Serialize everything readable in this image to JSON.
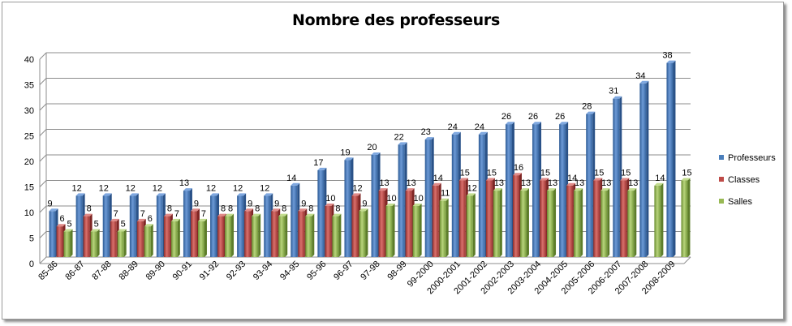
{
  "chart_data": {
    "type": "bar",
    "title": "Nombre des professeurs",
    "xlabel": "",
    "ylabel": "",
    "ylim": [
      0,
      40
    ],
    "yticks": [
      0,
      5,
      10,
      15,
      20,
      25,
      30,
      35,
      40
    ],
    "grid": true,
    "legend": "right",
    "categories": [
      "85-86",
      "86-87",
      "87-88",
      "88-89",
      "89-90",
      "90-91",
      "91-92",
      "92-93",
      "93-94",
      "94-95",
      "95-96",
      "96-97",
      "97-98",
      "98-99",
      "99-2000",
      "2000-2001",
      "2001-2002",
      "2002-2003",
      "2003-2004",
      "2004-2005",
      "2005-2006",
      "2006-2007",
      "2007-2008",
      "2008-2009"
    ],
    "series": [
      {
        "name": "Professeurs",
        "color": "#4a7ebb",
        "values": [
          9,
          12,
          12,
          12,
          12,
          13,
          12,
          12,
          12,
          14,
          17,
          19,
          20,
          22,
          23,
          24,
          24,
          26,
          26,
          26,
          28,
          31,
          34,
          38
        ]
      },
      {
        "name": "Classes",
        "color": "#be4b48",
        "values": [
          6,
          8,
          7,
          7,
          8,
          9,
          8,
          9,
          9,
          9,
          10,
          12,
          13,
          13,
          14,
          15,
          15,
          16,
          15,
          14,
          15,
          15,
          null,
          null
        ]
      },
      {
        "name": "Salles",
        "color": "#98b954",
        "values": [
          5,
          5,
          5,
          6,
          7,
          7,
          8,
          8,
          8,
          8,
          8,
          9,
          10,
          10,
          11,
          12,
          13,
          13,
          13,
          13,
          13,
          13,
          14,
          15
        ]
      }
    ]
  }
}
